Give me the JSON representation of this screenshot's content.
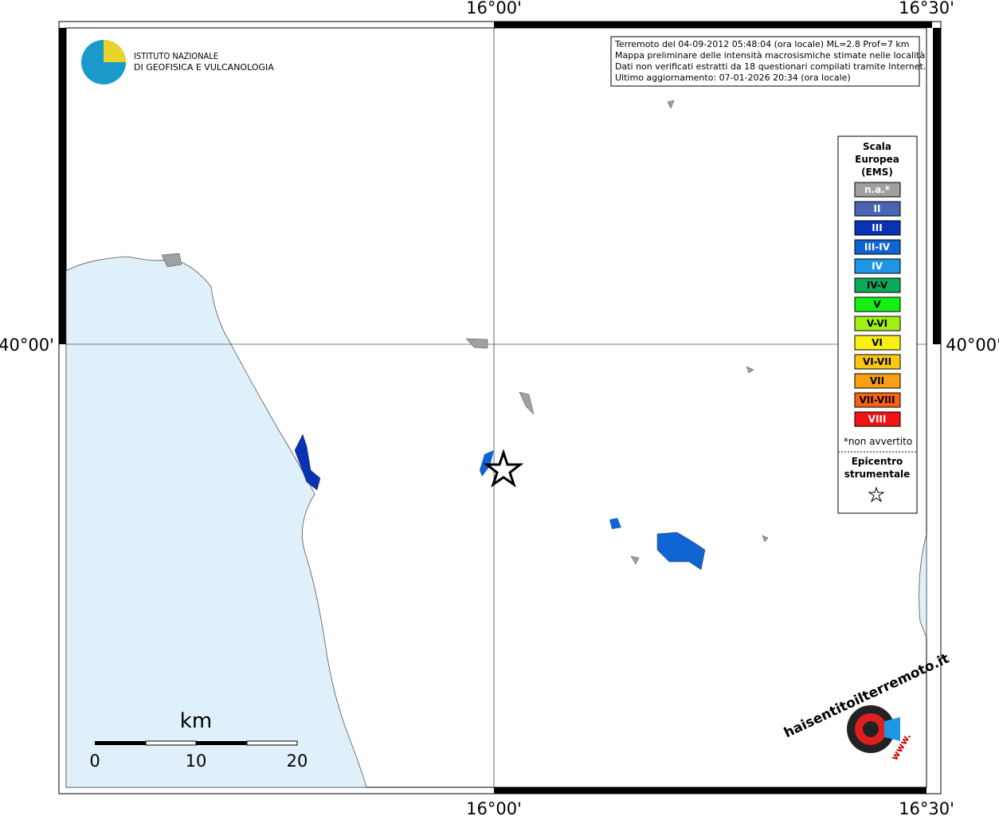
{
  "axes": {
    "top_left": "16°00'",
    "top_right": "16°30'",
    "bottom_left": "16°00'",
    "bottom_right": "16°30'",
    "left": "40°00'",
    "right": "40°00'"
  },
  "logo": {
    "line1": "ISTITUTO NAZIONALE",
    "line2": "DI GEOFISICA E VULCANOLOGIA"
  },
  "info": {
    "lines": [
      "Terremoto del 04-09-2012 05:48:04 (ora locale) ML=2.8 Prof=7 km",
      "Mappa preliminare delle intensità macrosismiche stimate nelle località",
      "Dati non verificati estratti da 18 questionari compilati tramite Internet.",
      "Ultimo aggiornamento: 07-01-2026 20:34 (ora locale)"
    ]
  },
  "legend": {
    "title": [
      "Scala",
      "Europea",
      "(EMS)"
    ],
    "items": [
      {
        "label": "n.a.*",
        "color": "#a0a0a0",
        "text_color": "#ffffff"
      },
      {
        "label": "II",
        "color": "#4a64b4",
        "text_color": "#ffffff"
      },
      {
        "label": "III",
        "color": "#0a32b4",
        "text_color": "#ffffff"
      },
      {
        "label": "III-IV",
        "color": "#1064d2",
        "text_color": "#ffffff"
      },
      {
        "label": "IV",
        "color": "#1e96e6",
        "text_color": "#ffffff"
      },
      {
        "label": "IV-V",
        "color": "#0aaa5a",
        "text_color": "#000000"
      },
      {
        "label": "V",
        "color": "#14f014",
        "text_color": "#000000"
      },
      {
        "label": "V-VI",
        "color": "#a0f014",
        "text_color": "#000000"
      },
      {
        "label": "VI",
        "color": "#f8f014",
        "text_color": "#000000"
      },
      {
        "label": "VI-VII",
        "color": "#f8c814",
        "text_color": "#000000"
      },
      {
        "label": "VII",
        "color": "#f8a014",
        "text_color": "#000000"
      },
      {
        "label": "VII-VIII",
        "color": "#f86414",
        "text_color": "#000000"
      },
      {
        "label": "VIII",
        "color": "#f01414",
        "text_color": "#ffffff"
      }
    ],
    "note": "*non avvertito",
    "epicenter": [
      "Epicentro",
      "strumentale"
    ]
  },
  "scale_bar": {
    "unit": "km",
    "ticks": [
      0,
      10,
      20
    ]
  },
  "site_logo": {
    "text": "haisentitoilterremoto.it",
    "prefix": "www."
  }
}
